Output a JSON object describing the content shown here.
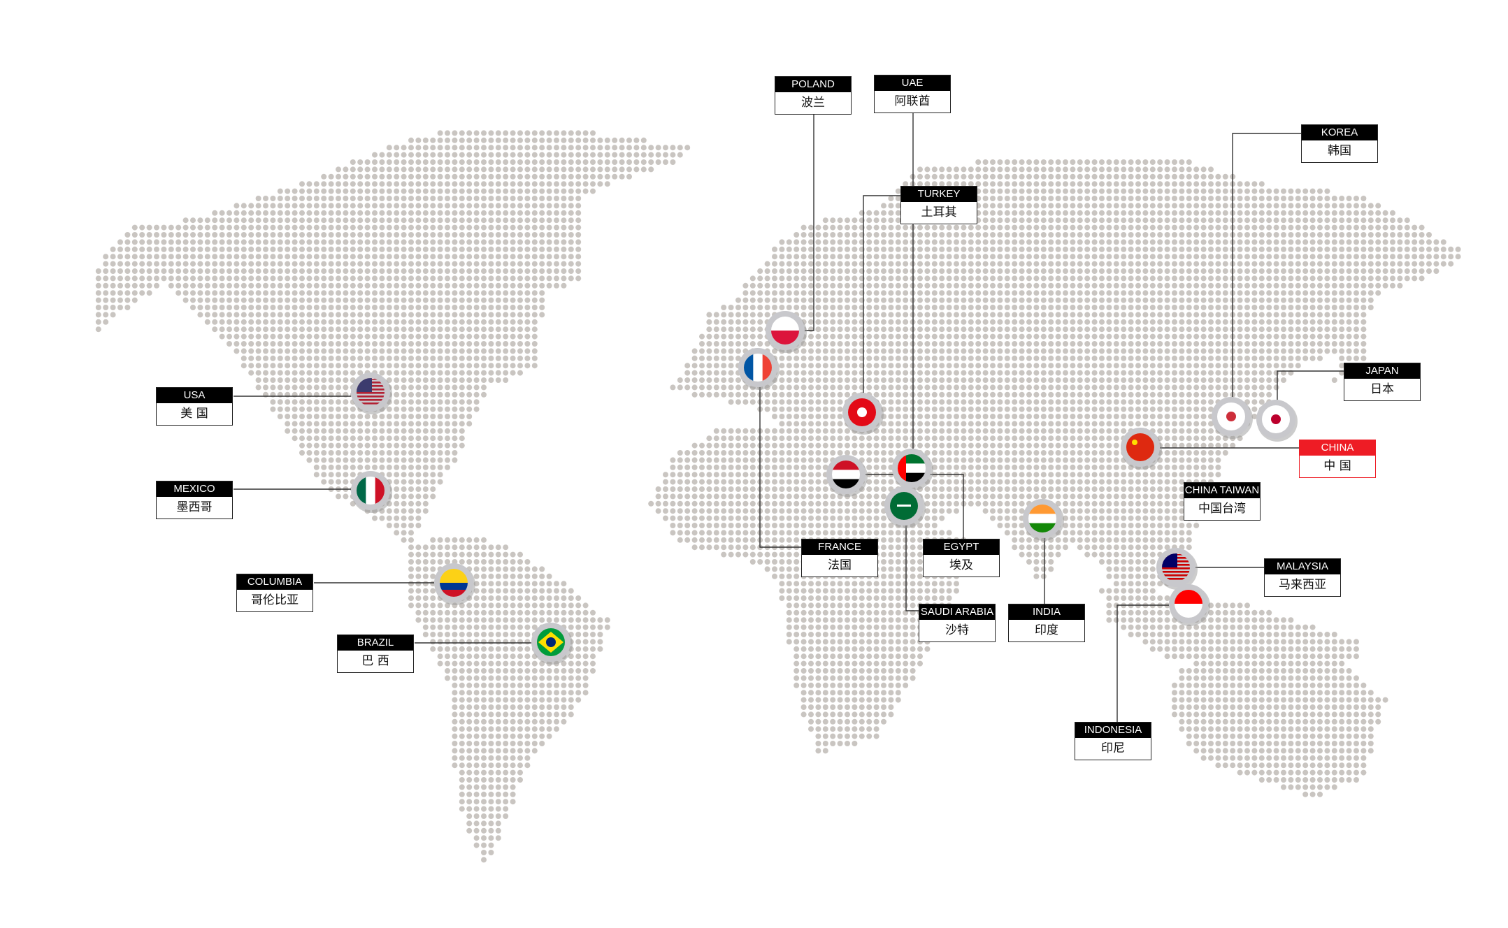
{
  "map": {
    "dot_color": "#c9c5c1",
    "line_color": "#333333",
    "highlight_color": "#ee1c25"
  },
  "countries": [
    {
      "id": "usa",
      "en": "USA",
      "zh": "美 国",
      "flag": {
        "type": "usa",
        "colors": [
          "#b22234",
          "#ffffff",
          "#3c3b6e"
        ]
      }
    },
    {
      "id": "mexico",
      "en": "MEXICO",
      "zh": "墨西哥",
      "flag": {
        "type": "v",
        "colors": [
          "#006847",
          "#ffffff",
          "#ce1126"
        ]
      }
    },
    {
      "id": "columbia",
      "en": "COLUMBIA",
      "zh": "哥伦比亚",
      "flag": {
        "type": "h",
        "colors": [
          "#fcd116",
          "#fcd116",
          "#003893",
          "#ce1126"
        ]
      }
    },
    {
      "id": "brazil",
      "en": "BRAZIL",
      "zh": "巴 西",
      "flag": {
        "type": "brazil",
        "colors": [
          "#009c3b",
          "#ffdf00",
          "#002776"
        ]
      }
    },
    {
      "id": "poland",
      "en": "POLAND",
      "zh": "波兰",
      "flag": {
        "type": "h",
        "colors": [
          "#ffffff",
          "#dc143c"
        ]
      }
    },
    {
      "id": "uae",
      "en": "UAE",
      "zh": "阿联酋",
      "flag": {
        "type": "uae",
        "colors": [
          "#00732f",
          "#ffffff",
          "#000000",
          "#ff0000"
        ]
      }
    },
    {
      "id": "turkey",
      "en": "TURKEY",
      "zh": "土耳其",
      "flag": {
        "type": "dot",
        "colors": [
          "#e30a17",
          "#ffffff"
        ]
      }
    },
    {
      "id": "france",
      "en": "FRANCE",
      "zh": "法国",
      "flag": {
        "type": "v",
        "colors": [
          "#0055a4",
          "#ffffff",
          "#ef4135"
        ]
      }
    },
    {
      "id": "egypt",
      "en": "EGYPT",
      "zh": "埃及",
      "flag": {
        "type": "h",
        "colors": [
          "#ce1126",
          "#ffffff",
          "#000000"
        ]
      }
    },
    {
      "id": "saudi",
      "en": "SAUDI ARABIA",
      "zh": "沙特",
      "flag": {
        "type": "solid",
        "colors": [
          "#006c35"
        ]
      }
    },
    {
      "id": "india",
      "en": "INDIA",
      "zh": "印度",
      "flag": {
        "type": "h",
        "colors": [
          "#ff9933",
          "#ffffff",
          "#138808"
        ]
      }
    },
    {
      "id": "china",
      "en": "CHINA",
      "zh": "中 国",
      "highlight": true,
      "flag": {
        "type": "china",
        "colors": [
          "#de2910",
          "#ffde00"
        ]
      }
    },
    {
      "id": "taiwan",
      "en": "CHINA TAIWAN",
      "zh": "中国台湾"
    },
    {
      "id": "korea",
      "en": "KOREA",
      "zh": "韩国",
      "flag": {
        "type": "dot",
        "colors": [
          "#ffffff",
          "#cd2e3a"
        ]
      }
    },
    {
      "id": "japan",
      "en": "JAPAN",
      "zh": "日本",
      "flag": {
        "type": "dot",
        "colors": [
          "#ffffff",
          "#bc002d"
        ]
      }
    },
    {
      "id": "malaysia",
      "en": "MALAYSIA",
      "zh": "马来西亚",
      "flag": {
        "type": "usa",
        "colors": [
          "#cc0001",
          "#ffffff",
          "#010066"
        ]
      }
    },
    {
      "id": "indonesia",
      "en": "INDONESIA",
      "zh": "印尼",
      "flag": {
        "type": "h",
        "colors": [
          "#ff0000",
          "#ffffff"
        ]
      }
    }
  ]
}
